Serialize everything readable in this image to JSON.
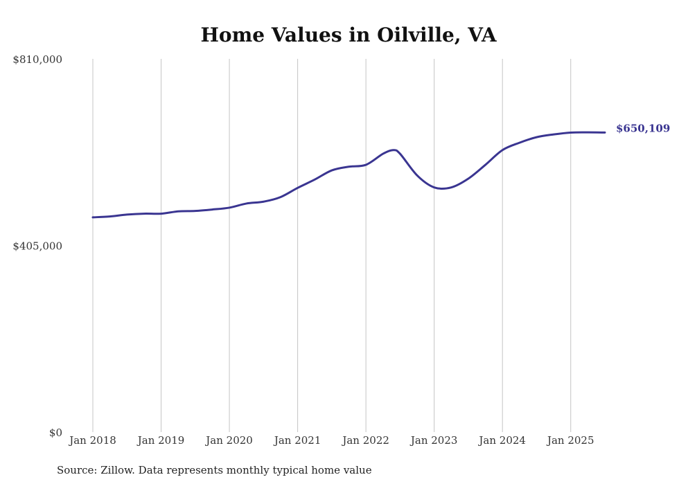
{
  "chart_data": {
    "type": "line",
    "title": "Home Values in Oilville, VA",
    "xlabel": "",
    "ylabel": "",
    "ylim": [
      0,
      810000
    ],
    "xlim": [
      2018.0,
      2025.5
    ],
    "y_ticks": [
      {
        "value": 0,
        "label": "$0"
      },
      {
        "value": 405000,
        "label": "$405,000"
      },
      {
        "value": 810000,
        "label": "$810,000"
      }
    ],
    "x_ticks": [
      {
        "value": 2018,
        "label": "Jan 2018"
      },
      {
        "value": 2019,
        "label": "Jan 2019"
      },
      {
        "value": 2020,
        "label": "Jan 2020"
      },
      {
        "value": 2021,
        "label": "Jan 2021"
      },
      {
        "value": 2022,
        "label": "Jan 2022"
      },
      {
        "value": 2023,
        "label": "Jan 2023"
      },
      {
        "value": 2024,
        "label": "Jan 2024"
      },
      {
        "value": 2025,
        "label": "Jan 2025"
      }
    ],
    "grid": "vertical",
    "series": [
      {
        "name": "Typical home value",
        "color": "#3a3591",
        "points": [
          [
            2018.0,
            466000
          ],
          [
            2018.25,
            468000
          ],
          [
            2018.5,
            472000
          ],
          [
            2018.75,
            474000
          ],
          [
            2019.0,
            474000
          ],
          [
            2019.25,
            479000
          ],
          [
            2019.5,
            480000
          ],
          [
            2019.75,
            483000
          ],
          [
            2020.0,
            487000
          ],
          [
            2020.25,
            496000
          ],
          [
            2020.5,
            500000
          ],
          [
            2020.75,
            510000
          ],
          [
            2021.0,
            530000
          ],
          [
            2021.25,
            548000
          ],
          [
            2021.5,
            568000
          ],
          [
            2021.75,
            576000
          ],
          [
            2022.0,
            580000
          ],
          [
            2022.25,
            604000
          ],
          [
            2022.4,
            612000
          ],
          [
            2022.5,
            604000
          ],
          [
            2022.75,
            557000
          ],
          [
            2023.0,
            531000
          ],
          [
            2023.25,
            531000
          ],
          [
            2023.5,
            550000
          ],
          [
            2023.75,
            580000
          ],
          [
            2024.0,
            612000
          ],
          [
            2024.25,
            628000
          ],
          [
            2024.5,
            640000
          ],
          [
            2024.75,
            646000
          ],
          [
            2025.0,
            650000
          ],
          [
            2025.25,
            650500
          ],
          [
            2025.5,
            650109
          ]
        ],
        "end_label": "$650,109"
      }
    ]
  },
  "footer": {
    "source": "Source: Zillow. Data represents monthly typical home value"
  }
}
